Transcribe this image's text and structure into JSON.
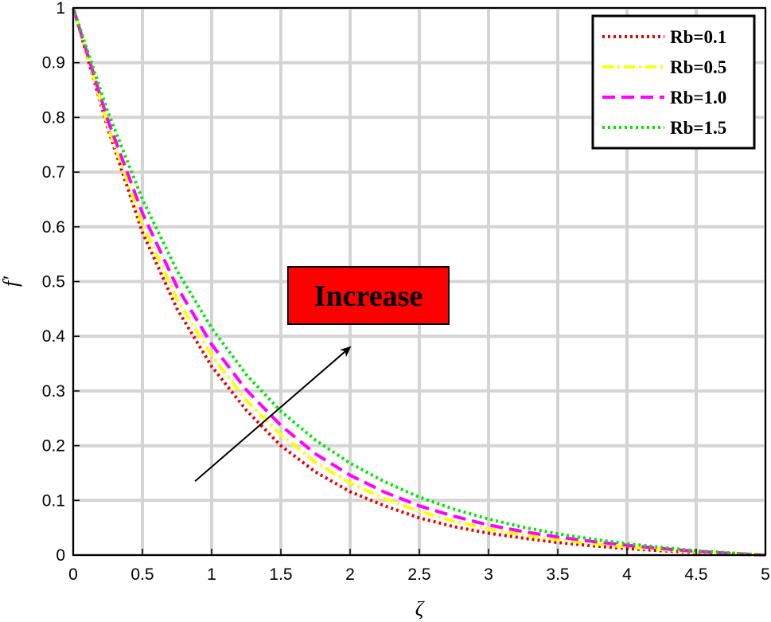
{
  "chart_data": {
    "type": "line",
    "title": "",
    "xlabel": "ζ",
    "ylabel": "f′",
    "xlim": [
      0,
      5
    ],
    "ylim": [
      0,
      1
    ],
    "xticks": [
      0,
      0.5,
      1,
      1.5,
      2,
      2.5,
      3,
      3.5,
      4,
      4.5,
      5
    ],
    "xtick_labels": [
      "0",
      "0.5",
      "1",
      "1.5",
      "2",
      "2.5",
      "3",
      "3.5",
      "4",
      "4.5",
      "5"
    ],
    "yticks": [
      0,
      0.1,
      0.2,
      0.3,
      0.4,
      0.5,
      0.6,
      0.7,
      0.8,
      0.9,
      1
    ],
    "ytick_labels": [
      "0",
      "0.1",
      "0.2",
      "0.3",
      "0.4",
      "0.5",
      "0.6",
      "0.7",
      "0.8",
      "0.9",
      "1"
    ],
    "grid": true,
    "legend_position": "top-right",
    "x": [
      0,
      0.25,
      0.5,
      0.75,
      1,
      1.25,
      1.5,
      1.75,
      2,
      2.25,
      2.5,
      2.75,
      3,
      3.25,
      3.5,
      3.75,
      4,
      4.25,
      4.5,
      4.75,
      5
    ],
    "series": [
      {
        "name": "Rb=0.1",
        "color": "#e60000",
        "dash": "dotted",
        "values": [
          1.0,
          0.78,
          0.59,
          0.45,
          0.345,
          0.265,
          0.2,
          0.152,
          0.116,
          0.09,
          0.068,
          0.052,
          0.04,
          0.031,
          0.023,
          0.017,
          0.012,
          0.008,
          0.005,
          0.002,
          0.0
        ]
      },
      {
        "name": "Rb=0.5",
        "color": "#ffff00",
        "dash": "dashdot",
        "values": [
          1.0,
          0.785,
          0.605,
          0.468,
          0.365,
          0.283,
          0.22,
          0.17,
          0.132,
          0.103,
          0.08,
          0.062,
          0.048,
          0.037,
          0.028,
          0.021,
          0.015,
          0.01,
          0.006,
          0.003,
          0.0
        ]
      },
      {
        "name": "Rb=1.0",
        "color": "#ff00ff",
        "dash": "dashed",
        "values": [
          1.0,
          0.795,
          0.625,
          0.49,
          0.385,
          0.302,
          0.237,
          0.185,
          0.146,
          0.115,
          0.09,
          0.071,
          0.055,
          0.043,
          0.033,
          0.025,
          0.018,
          0.012,
          0.007,
          0.003,
          0.0
        ]
      },
      {
        "name": "Rb=1.5",
        "color": "#00e600",
        "dash": "dotted",
        "values": [
          1.0,
          0.81,
          0.65,
          0.52,
          0.415,
          0.33,
          0.263,
          0.21,
          0.168,
          0.134,
          0.106,
          0.084,
          0.066,
          0.051,
          0.039,
          0.029,
          0.021,
          0.014,
          0.008,
          0.004,
          0.0
        ]
      }
    ],
    "annotations": {
      "label": "Increase",
      "label_color": "#ff0000",
      "arrow_from": [
        0.88,
        0.135
      ],
      "arrow_to": [
        2.0,
        0.38
      ]
    }
  }
}
